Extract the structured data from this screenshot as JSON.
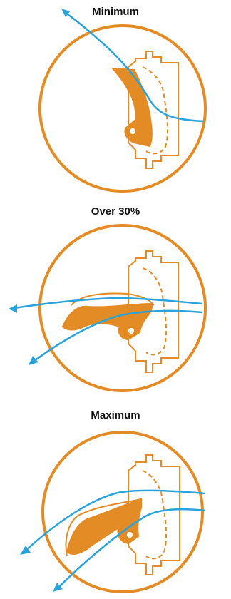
{
  "colors": {
    "ring": "#E38B24",
    "wing": "#E38B24",
    "airflow": "#29A3DB",
    "housing": "#E38B24",
    "title": "#111111"
  },
  "panels": [
    {
      "title": "Minimum"
    },
    {
      "title": "Over 30%"
    },
    {
      "title": "Maximum"
    }
  ]
}
